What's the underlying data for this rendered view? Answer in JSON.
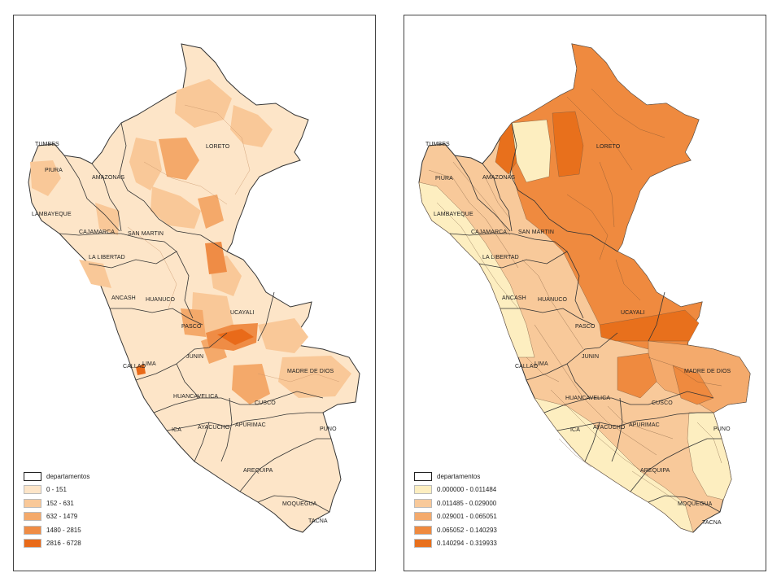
{
  "maps": [
    {
      "id": "left",
      "legend": {
        "outline_label": "departamentos",
        "classes": [
          {
            "label": "0 - 151",
            "color": "#fde5c8"
          },
          {
            "label": "152 - 631",
            "color": "#f9c898"
          },
          {
            "label": "632 - 1479",
            "color": "#f4a96a"
          },
          {
            "label": "1480 - 2815",
            "color": "#ef8c45"
          },
          {
            "label": "2816 - 6728",
            "color": "#e96a19"
          }
        ]
      },
      "regions": [
        "LORETO",
        "TUMBES",
        "PIURA",
        "AMAZONAS",
        "LAMBAYEQUE",
        "CAJAMARCA",
        "SAN MARTIN",
        "LA LIBERTAD",
        "ANCASH",
        "HUANUCO",
        "UCAYALI",
        "PASCO",
        "LIMA",
        "CALLAO",
        "JUNIN",
        "MADRE DE DIOS",
        "HUANCAVELICA",
        "CUSCO",
        "ICA",
        "AYACUCHO",
        "APURIMAC",
        "PUNO",
        "AREQUIPA",
        "MOQUEGUA",
        "TACNA"
      ]
    },
    {
      "id": "right",
      "legend": {
        "outline_label": "departamentos",
        "classes": [
          {
            "label": "0.000000 - 0.011484",
            "color": "#fdeec0"
          },
          {
            "label": "0.011485 - 0.029000",
            "color": "#f8c99a"
          },
          {
            "label": "0.029001 - 0.065051",
            "color": "#f4aa6c"
          },
          {
            "label": "0.065052 - 0.140293",
            "color": "#ef8a3f"
          },
          {
            "label": "0.140294 - 0.319933",
            "color": "#e8701c"
          }
        ]
      },
      "regions": [
        "LORETO",
        "TUMBES",
        "PIURA",
        "AMAZONAS",
        "LAMBAYEQUE",
        "CAJAMARCA",
        "SAN MARTIN",
        "LA LIBERTAD",
        "ANCASH",
        "HUANUCO",
        "UCAYALI",
        "PASCO",
        "LIMA",
        "CALLAO",
        "JUNIN",
        "MADRE DE DIOS",
        "HUANCAVELICA",
        "CUSCO",
        "ICA",
        "AYACUCHO",
        "APURIMAC",
        "PUNO",
        "AREQUIPA",
        "MOQUEGUA",
        "TACNA"
      ]
    }
  ]
}
